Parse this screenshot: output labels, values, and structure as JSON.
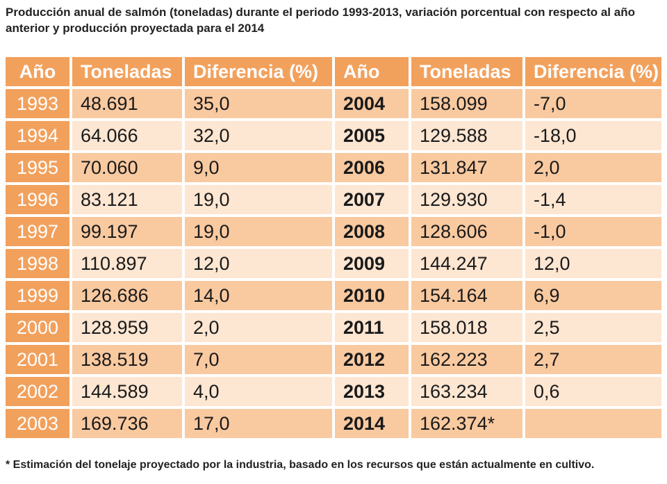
{
  "title": "Producción anual de salmón (toneladas) durante el periodo 1993-2013, variación porcentual con respecto al año anterior y producción proyectada para el 2014",
  "headers": [
    "Año",
    "Toneladas",
    "Diferencia (%)",
    "Año",
    "Toneladas",
    "Diferencia (%)"
  ],
  "left_rows": [
    {
      "year": "1993",
      "tons": "48.691",
      "diff": "35,0"
    },
    {
      "year": "1994",
      "tons": "64.066",
      "diff": "32,0"
    },
    {
      "year": "1995",
      "tons": "70.060",
      "diff": "9,0"
    },
    {
      "year": "1996",
      "tons": "83.121",
      "diff": "19,0"
    },
    {
      "year": "1997",
      "tons": "99.197",
      "diff": "19,0"
    },
    {
      "year": "1998",
      "tons": "110.897",
      "diff": "12,0"
    },
    {
      "year": "1999",
      "tons": "126.686",
      "diff": "14,0"
    },
    {
      "year": "2000",
      "tons": "128.959",
      "diff": "2,0"
    },
    {
      "year": "2001",
      "tons": "138.519",
      "diff": "7,0"
    },
    {
      "year": "2002",
      "tons": "144.589",
      "diff": "4,0"
    },
    {
      "year": "2003",
      "tons": "169.736",
      "diff": "17,0"
    }
  ],
  "right_rows": [
    {
      "year": "2004",
      "tons": "158.099",
      "diff": "-7,0"
    },
    {
      "year": "2005",
      "tons": "129.588",
      "diff": "-18,0"
    },
    {
      "year": "2006",
      "tons": "131.847",
      "diff": "2,0"
    },
    {
      "year": "2007",
      "tons": "129.930",
      "diff": "-1,4"
    },
    {
      "year": "2008",
      "tons": "128.606",
      "diff": "-1,0"
    },
    {
      "year": "2009",
      "tons": "144.247",
      "diff": "12,0"
    },
    {
      "year": "2010",
      "tons": "154.164",
      "diff": "6,9"
    },
    {
      "year": "2011",
      "tons": "158.018",
      "diff": "2,5"
    },
    {
      "year": "2012",
      "tons": "162.223",
      "diff": "2,7"
    },
    {
      "year": "2013",
      "tons": "163.234",
      "diff": "0,6"
    },
    {
      "year": "2014",
      "tons": "162.374*",
      "diff": ""
    }
  ],
  "footnote": "* Estimación del tonelaje proyectado por la industria, basado en los recursos que están actualmente en cultivo.",
  "colors": {
    "header": "#f2a15d",
    "row_dark": "#f9c9a0",
    "row_light": "#fde6d2"
  }
}
